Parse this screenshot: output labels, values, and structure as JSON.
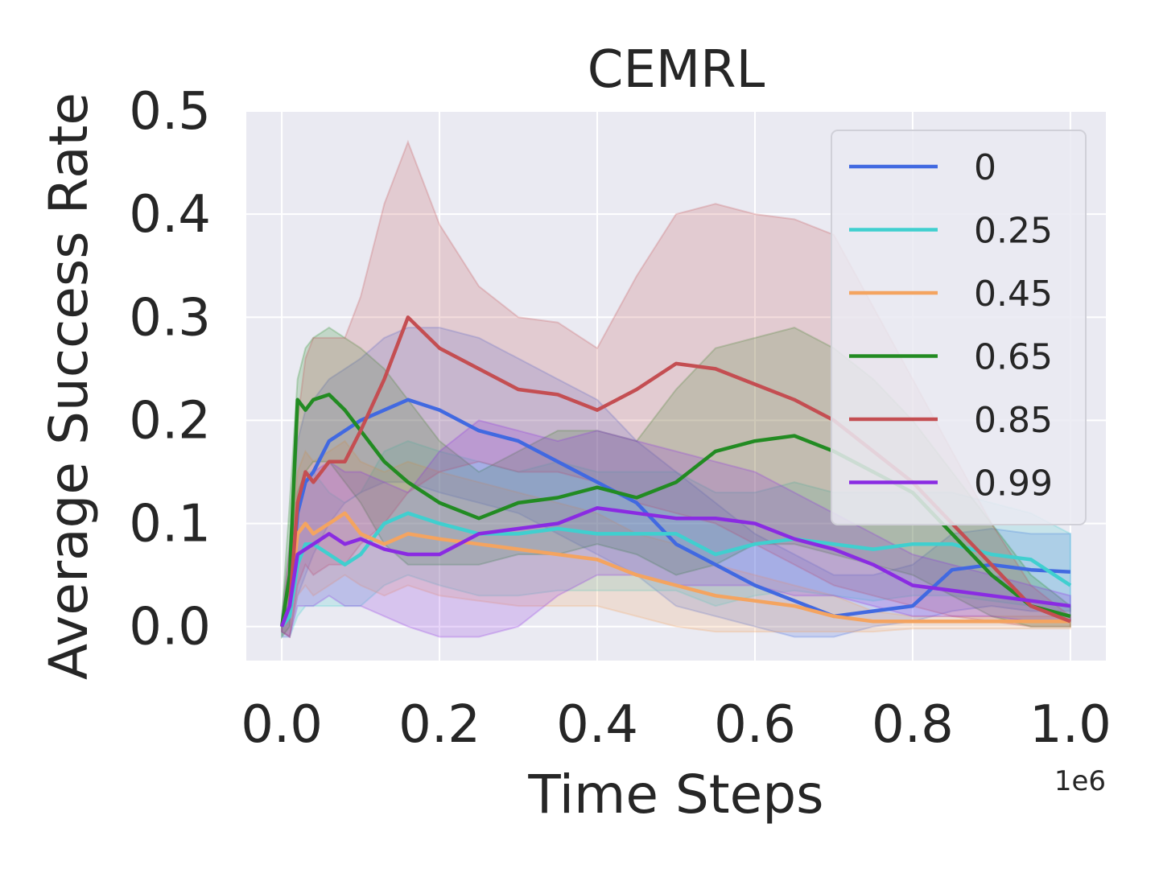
{
  "chart_data": {
    "type": "line",
    "title": "CEMRL",
    "xlabel": "Time Steps",
    "ylabel": "Average Success Rate",
    "x_offset_label": "1e6",
    "xlim": [
      -0.045,
      1.045
    ],
    "ylim": [
      -0.033,
      0.5
    ],
    "xticks": [
      0.0,
      0.2,
      0.4,
      0.6,
      0.8,
      1.0
    ],
    "xtick_labels": [
      "0.0",
      "0.2",
      "0.4",
      "0.6",
      "0.8",
      "1.0"
    ],
    "yticks": [
      0.0,
      0.1,
      0.2,
      0.3,
      0.4,
      0.5
    ],
    "ytick_labels": [
      "0.0",
      "0.1",
      "0.2",
      "0.3",
      "0.4",
      "0.5"
    ],
    "grid": true,
    "legend_position": "top-right",
    "x": [
      0.0,
      0.01,
      0.02,
      0.03,
      0.04,
      0.06,
      0.08,
      0.1,
      0.13,
      0.16,
      0.2,
      0.25,
      0.3,
      0.35,
      0.4,
      0.45,
      0.5,
      0.55,
      0.6,
      0.65,
      0.7,
      0.75,
      0.8,
      0.85,
      0.9,
      0.95,
      1.0
    ],
    "series": [
      {
        "name": "0",
        "color": "#4169e1",
        "values": [
          0.0,
          0.02,
          0.11,
          0.14,
          0.15,
          0.18,
          0.19,
          0.2,
          0.21,
          0.22,
          0.21,
          0.19,
          0.18,
          0.16,
          0.14,
          0.12,
          0.08,
          0.06,
          0.04,
          0.025,
          0.01,
          0.015,
          0.02,
          0.055,
          0.06,
          0.055,
          0.053
        ],
        "upper": [
          0.01,
          0.08,
          0.18,
          0.21,
          0.22,
          0.24,
          0.25,
          0.26,
          0.28,
          0.29,
          0.29,
          0.28,
          0.26,
          0.24,
          0.22,
          0.18,
          0.15,
          0.12,
          0.09,
          0.07,
          0.05,
          0.05,
          0.06,
          0.09,
          0.095,
          0.09,
          0.09
        ],
        "lower": [
          -0.01,
          -0.01,
          0.03,
          0.05,
          0.07,
          0.1,
          0.12,
          0.13,
          0.14,
          0.14,
          0.13,
          0.12,
          0.11,
          0.09,
          0.07,
          0.05,
          0.02,
          0.01,
          0.0,
          -0.01,
          -0.01,
          0.0,
          0.005,
          0.015,
          0.02,
          0.015,
          0.015
        ]
      },
      {
        "name": "0.25",
        "color": "#40cfcf",
        "values": [
          0.0,
          0.01,
          0.06,
          0.08,
          0.08,
          0.07,
          0.06,
          0.07,
          0.1,
          0.11,
          0.1,
          0.09,
          0.09,
          0.095,
          0.09,
          0.09,
          0.09,
          0.07,
          0.08,
          0.085,
          0.08,
          0.075,
          0.08,
          0.08,
          0.07,
          0.065,
          0.04
        ],
        "upper": [
          0.005,
          0.04,
          0.12,
          0.15,
          0.15,
          0.13,
          0.12,
          0.13,
          0.17,
          0.18,
          0.17,
          0.16,
          0.15,
          0.16,
          0.15,
          0.15,
          0.15,
          0.13,
          0.13,
          0.14,
          0.13,
          0.13,
          0.13,
          0.13,
          0.12,
          0.11,
          0.09
        ],
        "lower": [
          -0.005,
          -0.01,
          0.01,
          0.02,
          0.02,
          0.02,
          0.02,
          0.02,
          0.04,
          0.05,
          0.04,
          0.03,
          0.03,
          0.035,
          0.035,
          0.035,
          0.035,
          0.02,
          0.03,
          0.035,
          0.03,
          0.025,
          0.03,
          0.03,
          0.025,
          0.02,
          0.005
        ]
      },
      {
        "name": "0.45",
        "color": "#f4a460",
        "values": [
          0.0,
          0.02,
          0.09,
          0.1,
          0.09,
          0.1,
          0.11,
          0.09,
          0.08,
          0.09,
          0.085,
          0.08,
          0.075,
          0.07,
          0.065,
          0.05,
          0.04,
          0.03,
          0.025,
          0.02,
          0.01,
          0.005,
          0.005,
          0.005,
          0.005,
          0.005,
          0.005
        ],
        "upper": [
          0.005,
          0.06,
          0.15,
          0.17,
          0.16,
          0.17,
          0.18,
          0.16,
          0.15,
          0.16,
          0.15,
          0.14,
          0.13,
          0.12,
          0.11,
          0.09,
          0.08,
          0.06,
          0.05,
          0.04,
          0.03,
          0.015,
          0.01,
          0.01,
          0.01,
          0.01,
          0.01
        ],
        "lower": [
          -0.005,
          -0.01,
          0.03,
          0.04,
          0.03,
          0.04,
          0.05,
          0.04,
          0.03,
          0.04,
          0.03,
          0.025,
          0.02,
          0.02,
          0.02,
          0.01,
          0.0,
          -0.005,
          -0.005,
          -0.005,
          -0.005,
          -0.005,
          -0.002,
          -0.002,
          -0.002,
          -0.002,
          -0.002
        ]
      },
      {
        "name": "0.65",
        "color": "#228b22",
        "values": [
          0.0,
          0.05,
          0.22,
          0.21,
          0.22,
          0.225,
          0.21,
          0.19,
          0.16,
          0.14,
          0.12,
          0.105,
          0.12,
          0.125,
          0.135,
          0.125,
          0.14,
          0.17,
          0.18,
          0.185,
          0.17,
          0.15,
          0.13,
          0.09,
          0.05,
          0.02,
          0.01
        ],
        "upper": [
          0.01,
          0.12,
          0.24,
          0.27,
          0.28,
          0.29,
          0.28,
          0.27,
          0.25,
          0.22,
          0.18,
          0.15,
          0.17,
          0.19,
          0.19,
          0.18,
          0.23,
          0.27,
          0.28,
          0.29,
          0.27,
          0.24,
          0.2,
          0.15,
          0.1,
          0.05,
          0.02
        ],
        "lower": [
          -0.01,
          0.0,
          0.13,
          0.15,
          0.16,
          0.16,
          0.14,
          0.12,
          0.08,
          0.06,
          0.06,
          0.06,
          0.07,
          0.07,
          0.08,
          0.07,
          0.05,
          0.06,
          0.08,
          0.08,
          0.07,
          0.06,
          0.05,
          0.03,
          0.01,
          0.0,
          0.0
        ]
      },
      {
        "name": "0.85",
        "color": "#c44e52",
        "values": [
          0.0,
          0.02,
          0.12,
          0.15,
          0.14,
          0.16,
          0.16,
          0.19,
          0.24,
          0.3,
          0.27,
          0.25,
          0.23,
          0.225,
          0.21,
          0.23,
          0.255,
          0.25,
          0.235,
          0.22,
          0.2,
          0.17,
          0.14,
          0.1,
          0.06,
          0.02,
          0.005
        ],
        "upper": [
          0.005,
          0.08,
          0.2,
          0.26,
          0.28,
          0.28,
          0.28,
          0.32,
          0.41,
          0.47,
          0.39,
          0.33,
          0.3,
          0.295,
          0.27,
          0.34,
          0.4,
          0.41,
          0.4,
          0.395,
          0.38,
          0.31,
          0.24,
          0.17,
          0.1,
          0.04,
          0.01
        ],
        "lower": [
          -0.005,
          -0.01,
          0.04,
          0.06,
          0.05,
          0.06,
          0.06,
          0.08,
          0.1,
          0.13,
          0.15,
          0.16,
          0.15,
          0.15,
          0.14,
          0.12,
          0.11,
          0.1,
          0.08,
          0.06,
          0.04,
          0.03,
          0.02,
          0.01,
          0.005,
          0.0,
          0.0
        ]
      },
      {
        "name": "0.99",
        "color": "#8a2be2",
        "values": [
          0.0,
          0.02,
          0.07,
          0.075,
          0.08,
          0.09,
          0.08,
          0.085,
          0.075,
          0.07,
          0.07,
          0.09,
          0.095,
          0.1,
          0.115,
          0.11,
          0.105,
          0.105,
          0.1,
          0.085,
          0.075,
          0.06,
          0.04,
          0.035,
          0.03,
          0.025,
          0.02
        ],
        "upper": [
          0.005,
          0.06,
          0.12,
          0.14,
          0.15,
          0.16,
          0.15,
          0.15,
          0.14,
          0.13,
          0.17,
          0.2,
          0.19,
          0.18,
          0.19,
          0.18,
          0.17,
          0.16,
          0.15,
          0.13,
          0.11,
          0.09,
          0.07,
          0.06,
          0.05,
          0.04,
          0.03
        ],
        "lower": [
          -0.005,
          -0.01,
          0.02,
          0.02,
          0.02,
          0.03,
          0.02,
          0.02,
          0.01,
          0.0,
          -0.01,
          -0.01,
          0.0,
          0.03,
          0.05,
          0.05,
          0.04,
          0.04,
          0.04,
          0.03,
          0.03,
          0.02,
          0.01,
          0.01,
          0.01,
          0.005,
          0.005
        ]
      }
    ]
  }
}
